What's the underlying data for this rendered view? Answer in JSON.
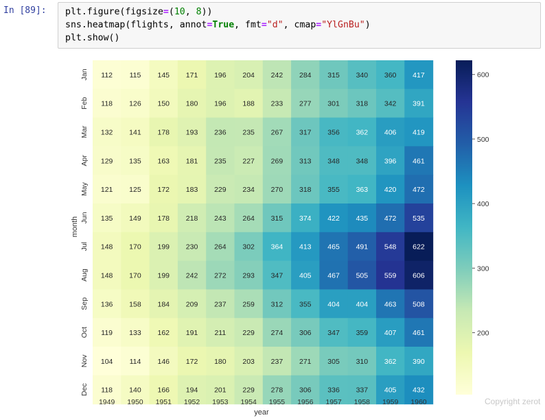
{
  "prompt": "In [89]:",
  "code": {
    "line1": [
      "plt.figure(figsize",
      "=",
      "(",
      "10",
      ", ",
      "8",
      "))"
    ],
    "line2": [
      "sns.heatmap(flights, annot",
      "=",
      "True",
      ", fmt",
      "=",
      "\"d\"",
      ", cmap",
      "=",
      "\"YlGnBu\"",
      ")"
    ],
    "line3": "plt.show()"
  },
  "watermark": "Copyright zerot",
  "chart_data": {
    "type": "heatmap",
    "xlabel": "year",
    "ylabel": "month",
    "colormap": "YlGnBu",
    "x": [
      "1949",
      "1950",
      "1951",
      "1952",
      "1953",
      "1954",
      "1955",
      "1956",
      "1957",
      "1958",
      "1959",
      "1960"
    ],
    "y": [
      "Jan",
      "Feb",
      "Mar",
      "Apr",
      "May",
      "Jun",
      "Jul",
      "Aug",
      "Sep",
      "Oct",
      "Nov",
      "Dec"
    ],
    "values": [
      [
        112,
        115,
        145,
        171,
        196,
        204,
        242,
        284,
        315,
        340,
        360,
        417
      ],
      [
        118,
        126,
        150,
        180,
        196,
        188,
        233,
        277,
        301,
        318,
        342,
        391
      ],
      [
        132,
        141,
        178,
        193,
        236,
        235,
        267,
        317,
        356,
        362,
        406,
        419
      ],
      [
        129,
        135,
        163,
        181,
        235,
        227,
        269,
        313,
        348,
        348,
        396,
        461
      ],
      [
        121,
        125,
        172,
        183,
        229,
        234,
        270,
        318,
        355,
        363,
        420,
        472
      ],
      [
        135,
        149,
        178,
        218,
        243,
        264,
        315,
        374,
        422,
        435,
        472,
        535
      ],
      [
        148,
        170,
        199,
        230,
        264,
        302,
        364,
        413,
        465,
        491,
        548,
        622
      ],
      [
        148,
        170,
        199,
        242,
        272,
        293,
        347,
        405,
        467,
        505,
        559,
        606
      ],
      [
        136,
        158,
        184,
        209,
        237,
        259,
        312,
        355,
        404,
        404,
        463,
        508
      ],
      [
        119,
        133,
        162,
        191,
        211,
        229,
        274,
        306,
        347,
        359,
        407,
        461
      ],
      [
        104,
        114,
        146,
        172,
        180,
        203,
        237,
        271,
        305,
        310,
        362,
        390
      ],
      [
        118,
        140,
        166,
        194,
        201,
        229,
        278,
        306,
        336,
        337,
        405,
        432
      ]
    ],
    "vmin": 104,
    "vmax": 622,
    "colorbar_ticks": [
      200,
      300,
      400,
      500,
      600
    ]
  }
}
